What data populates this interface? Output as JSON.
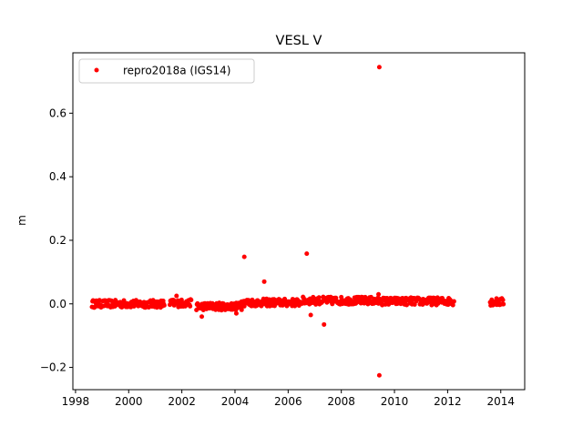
{
  "chart_data": {
    "type": "scatter",
    "title": "VESL V",
    "xlabel": "",
    "ylabel": "m",
    "xlim": [
      1997.9,
      2014.9
    ],
    "ylim": [
      -0.27,
      0.79
    ],
    "xticks": [
      1998,
      2000,
      2002,
      2004,
      2006,
      2008,
      2010,
      2012,
      2014
    ],
    "xtick_labels": [
      "1998",
      "2000",
      "2002",
      "2004",
      "2006",
      "2008",
      "2010",
      "2012",
      "2014"
    ],
    "yticks": [
      -0.2,
      0.0,
      0.2,
      0.4,
      0.6
    ],
    "ytick_labels": [
      "−0.2",
      "0.0",
      "0.2",
      "0.4",
      "0.6"
    ],
    "grid": false,
    "legend_position": "top-left",
    "series": [
      {
        "name": "repro2018a (IGS14)",
        "color": "#ff0000",
        "marker": "circle",
        "segments": [
          {
            "x_start": 1998.62,
            "x_end": 2001.35,
            "mean": 0.0,
            "spread": 0.012
          },
          {
            "x_start": 2001.55,
            "x_end": 2002.35,
            "mean": 0.002,
            "spread": 0.012
          },
          {
            "x_start": 2002.55,
            "x_end": 2004.25,
            "mean": -0.008,
            "spread": 0.012
          },
          {
            "x_start": 2004.25,
            "x_end": 2006.45,
            "mean": 0.004,
            "spread": 0.012
          },
          {
            "x_start": 2006.5,
            "x_end": 2009.2,
            "mean": 0.01,
            "spread": 0.012
          },
          {
            "x_start": 2009.2,
            "x_end": 2012.25,
            "mean": 0.008,
            "spread": 0.012
          },
          {
            "x_start": 2013.6,
            "x_end": 2014.1,
            "mean": 0.006,
            "spread": 0.012
          }
        ],
        "outliers": [
          {
            "x": 2004.35,
            "y": 0.148
          },
          {
            "x": 2005.1,
            "y": 0.07
          },
          {
            "x": 2006.7,
            "y": 0.158
          },
          {
            "x": 2006.85,
            "y": -0.035
          },
          {
            "x": 2007.35,
            "y": -0.065
          },
          {
            "x": 2002.75,
            "y": -0.04
          },
          {
            "x": 2004.05,
            "y": -0.03
          },
          {
            "x": 2009.43,
            "y": 0.745
          },
          {
            "x": 2009.43,
            "y": -0.225
          },
          {
            "x": 2009.4,
            "y": 0.03
          },
          {
            "x": 2001.8,
            "y": 0.025
          }
        ]
      }
    ]
  }
}
